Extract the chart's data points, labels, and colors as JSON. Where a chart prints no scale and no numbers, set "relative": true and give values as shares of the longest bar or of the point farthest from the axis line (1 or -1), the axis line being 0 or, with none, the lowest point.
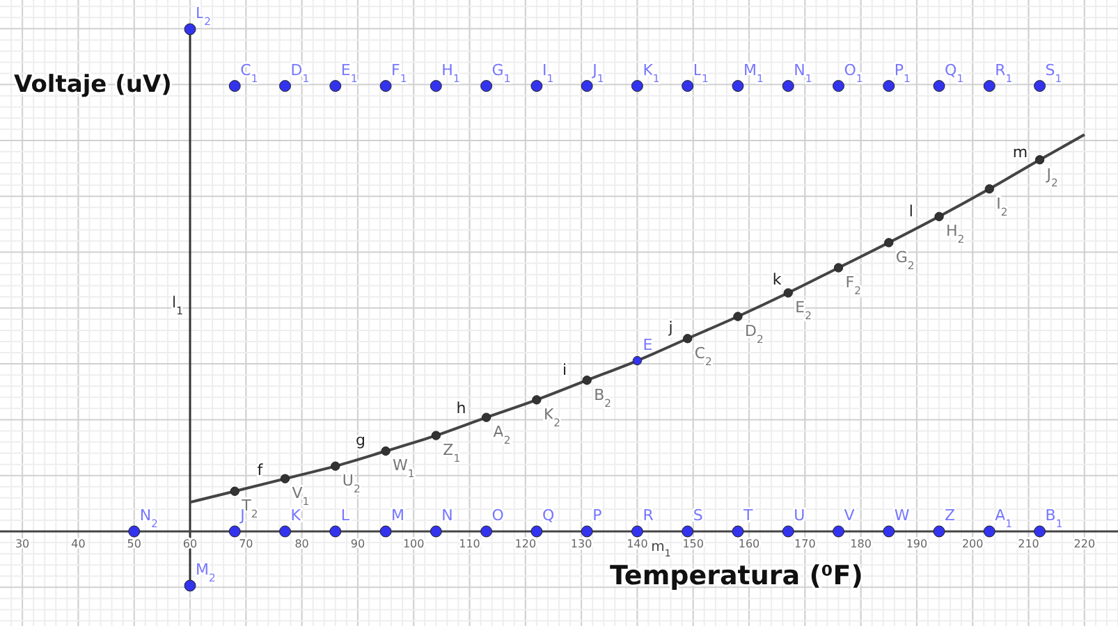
{
  "chart_data": {
    "type": "scatter",
    "xlabel": "Temperatura (⁰F)",
    "ylabel": "Voltaje (uV)",
    "relative": true,
    "xlim": [
      26,
      226
    ],
    "xticks": [
      30,
      40,
      50,
      60,
      70,
      80,
      90,
      100,
      110,
      120,
      130,
      140,
      150,
      160,
      170,
      180,
      190,
      200,
      210,
      220
    ],
    "grid": true,
    "marker": "circle",
    "tick_labels": "x",
    "series": [
      {
        "type": "line",
        "marker": "none",
        "color": "#444444",
        "x": [
          60,
          68,
          77,
          86,
          95,
          104,
          113,
          122,
          131,
          140,
          149,
          158,
          167,
          176,
          185,
          194,
          203,
          212,
          220
        ],
        "values": [
          0.058,
          0.08,
          0.105,
          0.13,
          0.16,
          0.191,
          0.227,
          0.262,
          0.301,
          0.34,
          0.384,
          0.428,
          0.475,
          0.525,
          0.575,
          0.627,
          0.682,
          0.74,
          0.79
        ]
      },
      {
        "color": "#333333",
        "colors": [
          "#333333",
          "#333333",
          "#333333",
          "#333333",
          "#333333",
          "#333333",
          "#333333",
          "#333333",
          "#3333ee",
          "#333333",
          "#333333",
          "#333333",
          "#333333",
          "#333333",
          "#333333",
          "#333333",
          "#333333"
        ],
        "x": [
          68,
          77,
          86,
          95,
          104,
          113,
          122,
          131,
          140,
          149,
          158,
          167,
          176,
          185,
          194,
          203,
          212
        ],
        "values": [
          0.08,
          0.105,
          0.13,
          0.16,
          0.191,
          0.227,
          0.262,
          0.301,
          0.34,
          0.384,
          0.428,
          0.475,
          0.525,
          0.575,
          0.627,
          0.682,
          0.74
        ]
      },
      {
        "color": "#3333ee",
        "x": [
          68,
          77,
          86,
          95,
          104,
          113,
          122,
          131,
          140,
          149,
          158,
          167,
          176,
          185,
          194,
          203,
          212
        ],
        "values": [
          0.887,
          0.887,
          0.887,
          0.887,
          0.887,
          0.887,
          0.887,
          0.887,
          0.887,
          0.887,
          0.887,
          0.887,
          0.887,
          0.887,
          0.887,
          0.887,
          0.887
        ]
      },
      {
        "color": "#3333ee",
        "x": [
          50,
          68,
          77,
          86,
          95,
          104,
          113,
          122,
          131,
          140,
          149,
          158,
          167,
          176,
          185,
          194,
          203,
          212
        ],
        "values": [
          0,
          0,
          0,
          0,
          0,
          0,
          0,
          0,
          0,
          0,
          0,
          0,
          0,
          0,
          0,
          0,
          0,
          0
        ]
      },
      {
        "color": "#3333ee",
        "x": [
          60,
          60
        ],
        "values": [
          1,
          -0.108
        ]
      }
    ],
    "ref_lines": [
      {
        "axis": "x",
        "value": 60,
        "label": "l$_{1}$",
        "color": "#333333"
      }
    ],
    "annotations": [
      {
        "text": "T$_{2}$",
        "x": 68,
        "y": 0.08
      },
      {
        "text": "V$_{1}$",
        "x": 77,
        "y": 0.105
      },
      {
        "text": "U$_{2}$",
        "x": 86,
        "y": 0.13
      },
      {
        "text": "W$_{1}$",
        "x": 95,
        "y": 0.16
      },
      {
        "text": "Z$_{1}$",
        "x": 104,
        "y": 0.191
      },
      {
        "text": "A$_{2}$",
        "x": 113,
        "y": 0.227
      },
      {
        "text": "K$_{2}$",
        "x": 122,
        "y": 0.262
      },
      {
        "text": "B$_{2}$",
        "x": 131,
        "y": 0.301
      },
      {
        "text": "E",
        "x": 140,
        "y": 0.34
      },
      {
        "text": "C$_{2}$",
        "x": 149,
        "y": 0.384
      },
      {
        "text": "D$_{2}$",
        "x": 158,
        "y": 0.428
      },
      {
        "text": "E$_{2}$",
        "x": 167,
        "y": 0.475
      },
      {
        "text": "F$_{2}$",
        "x": 176,
        "y": 0.525
      },
      {
        "text": "G$_{2}$",
        "x": 185,
        "y": 0.575
      },
      {
        "text": "H$_{2}$",
        "x": 194,
        "y": 0.627
      },
      {
        "text": "I$_{2}$",
        "x": 203,
        "y": 0.682
      },
      {
        "text": "J$_{2}$",
        "x": 212,
        "y": 0.74
      },
      {
        "text": "C$_{1}$",
        "x": 68,
        "y": 0.887
      },
      {
        "text": "D$_{1}$",
        "x": 77,
        "y": 0.887
      },
      {
        "text": "E$_{1}$",
        "x": 86,
        "y": 0.887
      },
      {
        "text": "F$_{1}$",
        "x": 95,
        "y": 0.887
      },
      {
        "text": "H$_{1}$",
        "x": 104,
        "y": 0.887
      },
      {
        "text": "G$_{1}$",
        "x": 113,
        "y": 0.887
      },
      {
        "text": "I$_{1}$",
        "x": 122,
        "y": 0.887
      },
      {
        "text": "J$_{1}$",
        "x": 131,
        "y": 0.887
      },
      {
        "text": "K$_{1}$",
        "x": 140,
        "y": 0.887
      },
      {
        "text": "L$_{1}$",
        "x": 149,
        "y": 0.887
      },
      {
        "text": "M$_{1}$",
        "x": 158,
        "y": 0.887
      },
      {
        "text": "N$_{1}$",
        "x": 167,
        "y": 0.887
      },
      {
        "text": "O$_{1}$",
        "x": 176,
        "y": 0.887
      },
      {
        "text": "P$_{1}$",
        "x": 185,
        "y": 0.887
      },
      {
        "text": "Q$_{1}$",
        "x": 194,
        "y": 0.887
      },
      {
        "text": "R$_{1}$",
        "x": 203,
        "y": 0.887
      },
      {
        "text": "S$_{1}$",
        "x": 212,
        "y": 0.887
      },
      {
        "text": "N$_{2}$",
        "x": 50,
        "y": 0
      },
      {
        "text": "J",
        "x": 68,
        "y": 0
      },
      {
        "text": "K",
        "x": 77,
        "y": 0
      },
      {
        "text": "L",
        "x": 86,
        "y": 0
      },
      {
        "text": "M",
        "x": 95,
        "y": 0
      },
      {
        "text": "N",
        "x": 104,
        "y": 0
      },
      {
        "text": "O",
        "x": 113,
        "y": 0
      },
      {
        "text": "Q",
        "x": 122,
        "y": 0
      },
      {
        "text": "P",
        "x": 131,
        "y": 0
      },
      {
        "text": "R",
        "x": 140,
        "y": 0
      },
      {
        "text": "S",
        "x": 149,
        "y": 0
      },
      {
        "text": "T",
        "x": 158,
        "y": 0
      },
      {
        "text": "U",
        "x": 167,
        "y": 0
      },
      {
        "text": "V",
        "x": 176,
        "y": 0
      },
      {
        "text": "W",
        "x": 185,
        "y": 0
      },
      {
        "text": "Z",
        "x": 194,
        "y": 0
      },
      {
        "text": "A$_{1}$",
        "x": 203,
        "y": 0
      },
      {
        "text": "B$_{1}$",
        "x": 212,
        "y": 0
      },
      {
        "text": "L$_{2}$",
        "x": 60,
        "y": 1
      },
      {
        "text": "M$_{2}$",
        "x": 60,
        "y": -0.108
      },
      {
        "text": "f",
        "x": 72.5,
        "y": 0.085
      },
      {
        "text": "g",
        "x": 90.5,
        "y": 0.144
      },
      {
        "text": "h",
        "x": 108.5,
        "y": 0.208
      },
      {
        "text": "i",
        "x": 127,
        "y": 0.284
      },
      {
        "text": "j",
        "x": 146,
        "y": 0.369
      },
      {
        "text": "k",
        "x": 165,
        "y": 0.464
      },
      {
        "text": "l",
        "x": 189,
        "y": 0.6
      },
      {
        "text": "m",
        "x": 208.5,
        "y": 0.717
      },
      "m$_{1}$"
    ]
  }
}
